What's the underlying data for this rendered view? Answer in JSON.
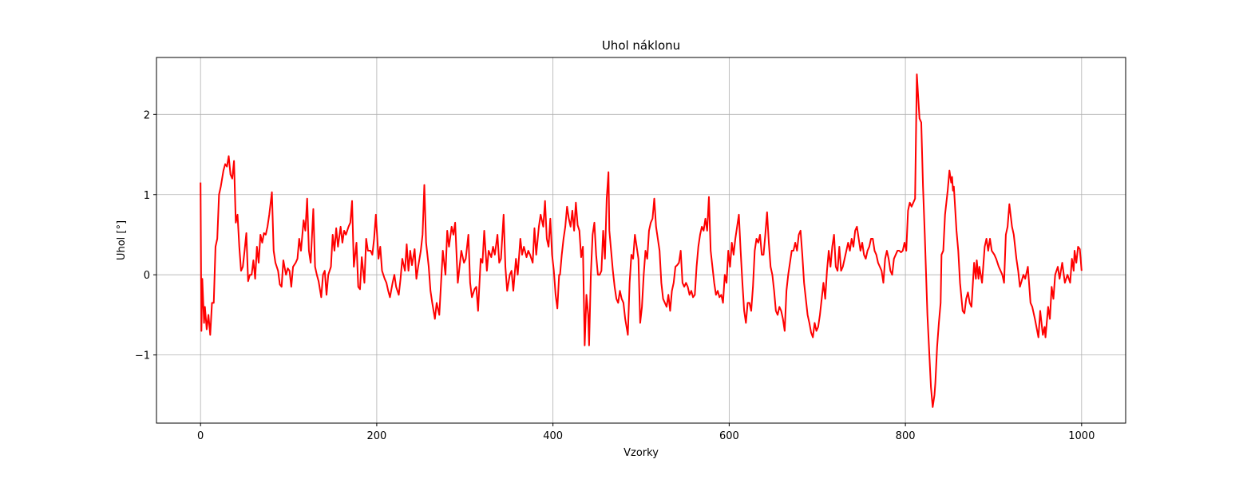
{
  "chart_data": {
    "type": "line",
    "title": "Uhol náklonu",
    "xlabel": "Vzorky",
    "ylabel": "Uhol [°]",
    "x": [
      0,
      1,
      2,
      4,
      5,
      7,
      9,
      11,
      13,
      15,
      17,
      19,
      21,
      23,
      26,
      28,
      30,
      32,
      34,
      36,
      38,
      40,
      42,
      44,
      46,
      48,
      50,
      52,
      54,
      56,
      58,
      60,
      62,
      64,
      66,
      68,
      70,
      72,
      74,
      76,
      78,
      81,
      83,
      85,
      88,
      90,
      92,
      94,
      97,
      99,
      101,
      103,
      105,
      108,
      110,
      112,
      114,
      117,
      119,
      121,
      123,
      125,
      128,
      130,
      132,
      134,
      137,
      139,
      141,
      143,
      145,
      148,
      150,
      152,
      154,
      156,
      159,
      161,
      163,
      165,
      168,
      170,
      172,
      174,
      177,
      179,
      181,
      183,
      186,
      188,
      190,
      193,
      195,
      197,
      199,
      202,
      204,
      206,
      209,
      211,
      213,
      215,
      218,
      220,
      222,
      225,
      227,
      229,
      232,
      234,
      236,
      238,
      240,
      243,
      245,
      247,
      250,
      252,
      254,
      256,
      259,
      261,
      263,
      266,
      268,
      271,
      273,
      275,
      278,
      280,
      282,
      285,
      287,
      289,
      292,
      294,
      296,
      299,
      301,
      304,
      306,
      308,
      311,
      313,
      315,
      318,
      320,
      322,
      325,
      327,
      330,
      332,
      334,
      337,
      339,
      341,
      344,
      346,
      348,
      351,
      353,
      355,
      358,
      360,
      363,
      365,
      367,
      370,
      372,
      374,
      377,
      379,
      381,
      384,
      386,
      389,
      391,
      393,
      395,
      397,
      399,
      401,
      403,
      405,
      407,
      408,
      410,
      412,
      414,
      416,
      418,
      420,
      422,
      424,
      426,
      428,
      430,
      432,
      434,
      436,
      438,
      440,
      441,
      443,
      445,
      447,
      449,
      451,
      453,
      455,
      457,
      459,
      461,
      463,
      464,
      466,
      468,
      470,
      472,
      474,
      476,
      478,
      480,
      482,
      485,
      487,
      489,
      491,
      493,
      495,
      497,
      499,
      501,
      503,
      505,
      507,
      509,
      511,
      513,
      515,
      517,
      519,
      521,
      523,
      525,
      527,
      529,
      531,
      533,
      535,
      537,
      539,
      541,
      543,
      545,
      547,
      549,
      551,
      553,
      555,
      557,
      559,
      561,
      563,
      565,
      567,
      569,
      571,
      573,
      575,
      577,
      579,
      581,
      583,
      585,
      587,
      589,
      591,
      593,
      595,
      597,
      599,
      601,
      603,
      605,
      607,
      609,
      611,
      613,
      615,
      617,
      619,
      621,
      623,
      625,
      627,
      629,
      631,
      633,
      635,
      637,
      639,
      641,
      643,
      645,
      647,
      649,
      651,
      653,
      655,
      657,
      659,
      661,
      663,
      665,
      667,
      669,
      671,
      673,
      675,
      677,
      679,
      681,
      683,
      685,
      687,
      689,
      691,
      693,
      695,
      697,
      699,
      701,
      703,
      705,
      707,
      709,
      711,
      713,
      715,
      717,
      719,
      721,
      723,
      725,
      727,
      729,
      731,
      733,
      735,
      737,
      739,
      741,
      743,
      745,
      747,
      749,
      751,
      753,
      755,
      757,
      759,
      761,
      763,
      765,
      767,
      769,
      771,
      773,
      775,
      777,
      779,
      781,
      783,
      785,
      787,
      789,
      791,
      793,
      795,
      797,
      799,
      801,
      803,
      805,
      807,
      809,
      811,
      813,
      816,
      818,
      820,
      822,
      825,
      827,
      829,
      831,
      833,
      834,
      836,
      838,
      840,
      841,
      843,
      845,
      848,
      850,
      852,
      853,
      854,
      855,
      858,
      860,
      862,
      865,
      867,
      869,
      871,
      873,
      875,
      878,
      880,
      881,
      883,
      884,
      887,
      890,
      892,
      894,
      896,
      898,
      901,
      903,
      906,
      910,
      912,
      914,
      916,
      918,
      921,
      923,
      926,
      928,
      930,
      934,
      936,
      938,
      939,
      942,
      944,
      947,
      951,
      953,
      956,
      958,
      959,
      962,
      964,
      966,
      968,
      970,
      973,
      975,
      978,
      981,
      984,
      987,
      989,
      991,
      992,
      994,
      996,
      998,
      1000
    ],
    "series": [
      {
        "name": "Uhol",
        "color": "#ff0000",
        "values": [
          1.15,
          -0.7,
          -0.05,
          -0.6,
          -0.4,
          -0.68,
          -0.5,
          -0.75,
          -0.35,
          -0.35,
          0.35,
          0.45,
          1.0,
          1.1,
          1.3,
          1.38,
          1.35,
          1.48,
          1.25,
          1.2,
          1.42,
          0.65,
          0.75,
          0.35,
          0.05,
          0.1,
          0.3,
          0.52,
          -0.08,
          0,
          0,
          0.18,
          -0.05,
          0.35,
          0.15,
          0.5,
          0.4,
          0.52,
          0.5,
          0.6,
          0.75,
          1.03,
          0.3,
          0.15,
          0.05,
          -0.12,
          -0.15,
          0.18,
          0,
          0.08,
          0.05,
          -0.15,
          0.1,
          0.15,
          0.2,
          0.45,
          0.3,
          0.68,
          0.55,
          0.95,
          0.3,
          0.15,
          0.82,
          0.1,
          0,
          -0.08,
          -0.28,
          0,
          0.05,
          -0.25,
          0,
          0.1,
          0.5,
          0.3,
          0.58,
          0.35,
          0.6,
          0.4,
          0.55,
          0.5,
          0.6,
          0.65,
          0.92,
          0.1,
          0.4,
          -0.15,
          -0.18,
          0.22,
          -0.1,
          0.45,
          0.3,
          0.3,
          0.25,
          0.45,
          0.75,
          0.2,
          0.35,
          0.05,
          -0.05,
          -0.1,
          -0.2,
          -0.28,
          -0.1,
          0,
          -0.15,
          -0.25,
          -0.05,
          0.2,
          0.05,
          0.38,
          0.05,
          0.3,
          0.12,
          0.32,
          -0.05,
          0.1,
          0.3,
          0.5,
          1.12,
          0.4,
          0.1,
          -0.2,
          -0.35,
          -0.55,
          -0.35,
          -0.5,
          -0.1,
          0.3,
          0,
          0.55,
          0.35,
          0.6,
          0.5,
          0.65,
          -0.1,
          0.1,
          0.3,
          0.15,
          0.2,
          0.5,
          -0.1,
          -0.28,
          -0.18,
          -0.15,
          -0.45,
          0.2,
          0.15,
          0.55,
          0.05,
          0.3,
          0.22,
          0.35,
          0.25,
          0.5,
          0.15,
          0.2,
          0.75,
          0.1,
          -0.2,
          0,
          0.05,
          -0.2,
          0.2,
          0,
          0.45,
          0.25,
          0.35,
          0.22,
          0.3,
          0.25,
          0.15,
          0.58,
          0.25,
          0.6,
          0.75,
          0.6,
          0.92,
          0.45,
          0.35,
          0.7,
          0.25,
          0.05,
          -0.25,
          -0.42,
          0,
          0,
          0.25,
          0.45,
          0.6,
          0.85,
          0.7,
          0.6,
          0.8,
          0.55,
          0.9,
          0.62,
          0.55,
          0.22,
          0.35,
          -0.88,
          -0.25,
          -0.5,
          -0.88,
          0,
          0.5,
          0.65,
          0.25,
          0,
          0,
          0.05,
          0.55,
          0.2,
          0.95,
          1.28,
          0.55,
          0.3,
          0.05,
          -0.15,
          -0.3,
          -0.35,
          -0.2,
          -0.3,
          -0.35,
          -0.55,
          -0.75,
          -0.1,
          0.25,
          0.2,
          0.5,
          0.35,
          0.2,
          -0.6,
          -0.4,
          0,
          0.3,
          0.2,
          0.55,
          0.65,
          0.7,
          0.95,
          0.6,
          0.45,
          0.3,
          -0.1,
          -0.3,
          -0.35,
          -0.4,
          -0.25,
          -0.45,
          -0.2,
          -0.1,
          0.1,
          0.12,
          0.15,
          0.3,
          -0.1,
          -0.15,
          -0.1,
          -0.15,
          -0.25,
          -0.2,
          -0.28,
          -0.25,
          0.1,
          0.35,
          0.5,
          0.6,
          0.55,
          0.7,
          0.55,
          0.97,
          0.3,
          0.1,
          -0.1,
          -0.25,
          -0.2,
          -0.28,
          -0.25,
          -0.35,
          0,
          -0.1,
          0.3,
          0.1,
          0.4,
          0.25,
          0.45,
          0.6,
          0.75,
          0.3,
          -0.1,
          -0.45,
          -0.6,
          -0.35,
          -0.35,
          -0.45,
          -0.15,
          0.3,
          0.45,
          0.4,
          0.5,
          0.25,
          0.25,
          0.5,
          0.78,
          0.4,
          0.1,
          0,
          -0.2,
          -0.45,
          -0.5,
          -0.4,
          -0.45,
          -0.55,
          -0.7,
          -0.2,
          0,
          0.15,
          0.3,
          0.3,
          0.4,
          0.3,
          0.5,
          0.55,
          0.25,
          -0.1,
          -0.3,
          -0.5,
          -0.6,
          -0.72,
          -0.78,
          -0.6,
          -0.7,
          -0.65,
          -0.5,
          -0.3,
          -0.1,
          -0.3,
          0.05,
          0.3,
          0.1,
          0.35,
          0.5,
          0.1,
          0.05,
          0.35,
          0.05,
          0.1,
          0.2,
          0.3,
          0.4,
          0.3,
          0.45,
          0.35,
          0.55,
          0.6,
          0.45,
          0.3,
          0.4,
          0.25,
          0.2,
          0.3,
          0.35,
          0.45,
          0.45,
          0.3,
          0.25,
          0.15,
          0.1,
          0.05,
          -0.1,
          0.2,
          0.3,
          0.2,
          0.05,
          0,
          0.2,
          0.25,
          0.3,
          0.3,
          0.28,
          0.3,
          0.4,
          0.3,
          0.8,
          0.9,
          0.85,
          0.9,
          0.95,
          2.5,
          1.95,
          1.9,
          1.1,
          0.5,
          -0.5,
          -0.95,
          -1.4,
          -1.65,
          -1.5,
          -1.35,
          -0.9,
          -0.6,
          -0.35,
          0.25,
          0.3,
          0.75,
          1.05,
          1.3,
          1.15,
          1.22,
          1.05,
          1.1,
          0.55,
          0.3,
          -0.1,
          -0.45,
          -0.48,
          -0.3,
          -0.22,
          -0.35,
          -0.4,
          0.15,
          -0.05,
          0.18,
          -0.05,
          0.1,
          -0.1,
          0.35,
          0.45,
          0.3,
          0.45,
          0.3,
          0.25,
          0.2,
          0.1,
          0,
          -0.1,
          0.5,
          0.6,
          0.88,
          0.6,
          0.5,
          0.2,
          0.05,
          -0.15,
          0,
          -0.05,
          0.05,
          0.1,
          -0.35,
          -0.4,
          -0.55,
          -0.78,
          -0.45,
          -0.75,
          -0.65,
          -0.78,
          -0.4,
          -0.55,
          -0.15,
          -0.3,
          0,
          0.1,
          -0.05,
          0.15,
          -0.1,
          0,
          -0.1,
          0.2,
          0.05,
          0.3,
          0.15,
          0.35,
          0.32,
          0.05
        ]
      }
    ],
    "xlim": [
      -50,
      1050
    ],
    "xticks": [
      0,
      200,
      400,
      600,
      800,
      1000
    ],
    "ylim": [
      -1.85,
      2.71
    ],
    "yticks": [
      {
        "value": -1,
        "label": "−1"
      },
      0,
      1,
      2
    ],
    "grid": true
  }
}
